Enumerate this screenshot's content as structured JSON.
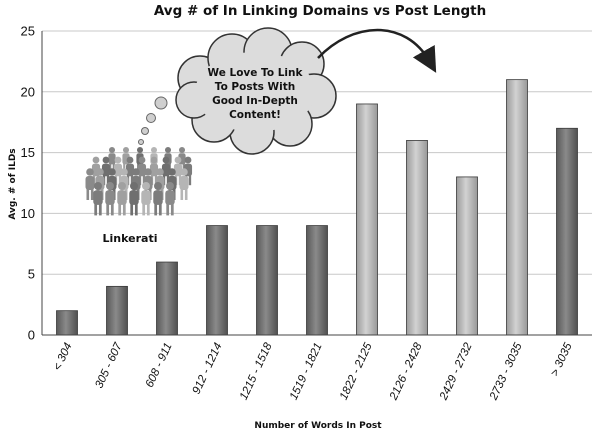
{
  "chart_data": {
    "type": "bar",
    "title": "Avg # of In Linking Domains vs Post Length",
    "xlabel": "Number of Words In Post",
    "ylabel": "Avg. # of ILDs",
    "ylim": [
      0,
      25
    ],
    "yticks": [
      0,
      5,
      10,
      15,
      20,
      25
    ],
    "grid": true,
    "categories": [
      "< 304",
      "305 - 607",
      "608 - 911",
      "912 - 1214",
      "1215 - 1518",
      "1519 - 1821",
      "1822 - 2125",
      "2126 - 2428",
      "2429 - 2732",
      "2733 - 3035",
      "> 3035"
    ],
    "values": [
      2,
      4,
      6,
      9,
      9,
      9,
      19,
      16,
      13,
      21,
      17
    ],
    "bar_shades": [
      "dark",
      "dark",
      "dark",
      "dark",
      "dark",
      "dark",
      "light",
      "light",
      "light",
      "light",
      "dark"
    ],
    "colors": {
      "dark": "#6e6e6e",
      "light": "#b3b3b3",
      "grid": "#c8c8c8"
    },
    "annotations": {
      "cloud_lines": [
        "We Love To Link",
        "To Posts With",
        "Good In-Depth",
        "Content!"
      ],
      "crowd_label": "Linkerati"
    }
  }
}
